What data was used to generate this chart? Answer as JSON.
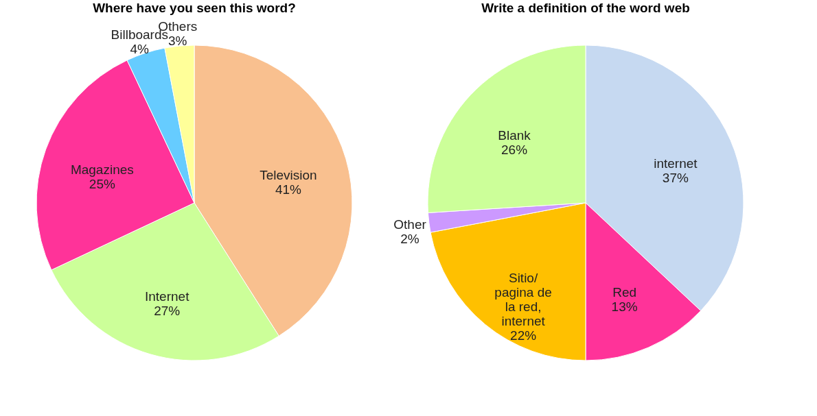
{
  "chart_data": [
    {
      "type": "pie",
      "title": "Where have you seen this word?",
      "categories": [
        "Television",
        "Internet",
        "Magazines",
        "Billboards",
        "Others"
      ],
      "values": [
        41,
        27,
        25,
        4,
        3
      ],
      "colors": [
        "#f9c08f",
        "#ccff99",
        "#ff3399",
        "#66ccff",
        "#ffff99"
      ],
      "value_labels": [
        "41%",
        "27%",
        "25%",
        "4%",
        "3%"
      ],
      "legend": false
    },
    {
      "type": "pie",
      "title": "Write a definition of the word web",
      "categories": [
        "internet",
        "Red",
        "Sitio/ pagina de la red, internet",
        "Other",
        "Blank"
      ],
      "values": [
        37,
        13,
        22,
        2,
        26
      ],
      "colors": [
        "#c6d9f1",
        "#ff3399",
        "#ffc000",
        "#cc99ff",
        "#ccff99"
      ],
      "value_labels": [
        "37%",
        "13%",
        "22%",
        "2%",
        "26%"
      ],
      "legend": false
    }
  ]
}
